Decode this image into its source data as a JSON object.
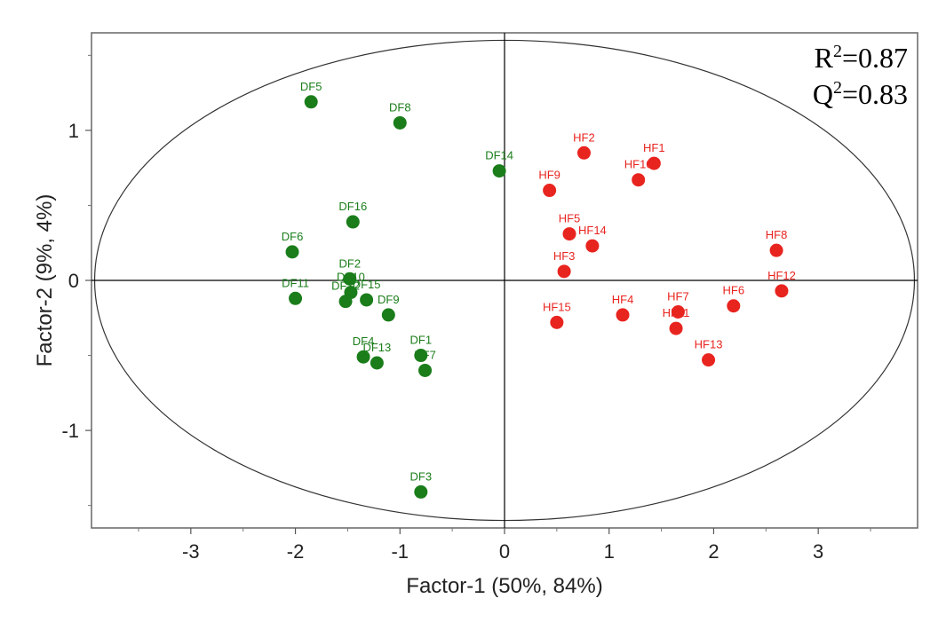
{
  "chart_data": {
    "type": "scatter",
    "xlabel": "Factor-1 (50%, 84%)",
    "ylabel": "Factor-2 (9%, 4%)",
    "xlim": [
      -3.95,
      3.95
    ],
    "ylim": [
      -1.65,
      1.65
    ],
    "x_ticks": [
      -3,
      -2,
      -1,
      0,
      1,
      2,
      3
    ],
    "y_ticks": [
      -1,
      0,
      1
    ],
    "grid": false,
    "ellipse": {
      "cx": 0,
      "cy": 0,
      "rx": 3.92,
      "ry": 1.6
    },
    "colors": {
      "DF": "#1a7d1a",
      "HF": "#e8241f"
    },
    "annotations": {
      "r2_prefix": "R",
      "r2_sup": "2",
      "r2_value": "=0.87",
      "q2_prefix": "Q",
      "q2_sup": "2",
      "q2_value": "=0.83"
    },
    "series": [
      {
        "group": "DF",
        "points": [
          {
            "label": "DF5",
            "x": -1.85,
            "y": 1.19
          },
          {
            "label": "DF8",
            "x": -1.0,
            "y": 1.05
          },
          {
            "label": "DF14",
            "x": -0.05,
            "y": 0.73
          },
          {
            "label": "DF16",
            "x": -1.45,
            "y": 0.39
          },
          {
            "label": "DF6",
            "x": -2.03,
            "y": 0.19
          },
          {
            "label": "DF2",
            "x": -1.48,
            "y": 0.01
          },
          {
            "label": "DF10",
            "x": -1.47,
            "y": -0.08
          },
          {
            "label": "DF12",
            "x": -1.52,
            "y": -0.14
          },
          {
            "label": "DF15",
            "x": -1.32,
            "y": -0.13
          },
          {
            "label": "DF11",
            "x": -2.0,
            "y": -0.12
          },
          {
            "label": "DF9",
            "x": -1.11,
            "y": -0.23
          },
          {
            "label": "DF4",
            "x": -1.35,
            "y": -0.51
          },
          {
            "label": "DF13",
            "x": -1.22,
            "y": -0.55
          },
          {
            "label": "DF1",
            "x": -0.8,
            "y": -0.5
          },
          {
            "label": "DF7",
            "x": -0.76,
            "y": -0.6
          },
          {
            "label": "DF3",
            "x": -0.8,
            "y": -1.41
          }
        ]
      },
      {
        "group": "HF",
        "points": [
          {
            "label": "HF2",
            "x": 0.76,
            "y": 0.85
          },
          {
            "label": "HF1",
            "x": 1.43,
            "y": 0.78
          },
          {
            "label": "HF10",
            "x": 1.28,
            "y": 0.67
          },
          {
            "label": "HF9",
            "x": 0.43,
            "y": 0.6
          },
          {
            "label": "HF5",
            "x": 0.62,
            "y": 0.31
          },
          {
            "label": "HF14",
            "x": 0.84,
            "y": 0.23
          },
          {
            "label": "HF3",
            "x": 0.57,
            "y": 0.06
          },
          {
            "label": "HF8",
            "x": 2.6,
            "y": 0.2
          },
          {
            "label": "HF12",
            "x": 2.65,
            "y": -0.07
          },
          {
            "label": "HF6",
            "x": 2.19,
            "y": -0.17
          },
          {
            "label": "HF7",
            "x": 1.66,
            "y": -0.21
          },
          {
            "label": "HF11",
            "x": 1.64,
            "y": -0.32
          },
          {
            "label": "HF4",
            "x": 1.13,
            "y": -0.23
          },
          {
            "label": "HF15",
            "x": 0.5,
            "y": -0.28
          },
          {
            "label": "HF13",
            "x": 1.95,
            "y": -0.53
          }
        ]
      }
    ]
  }
}
